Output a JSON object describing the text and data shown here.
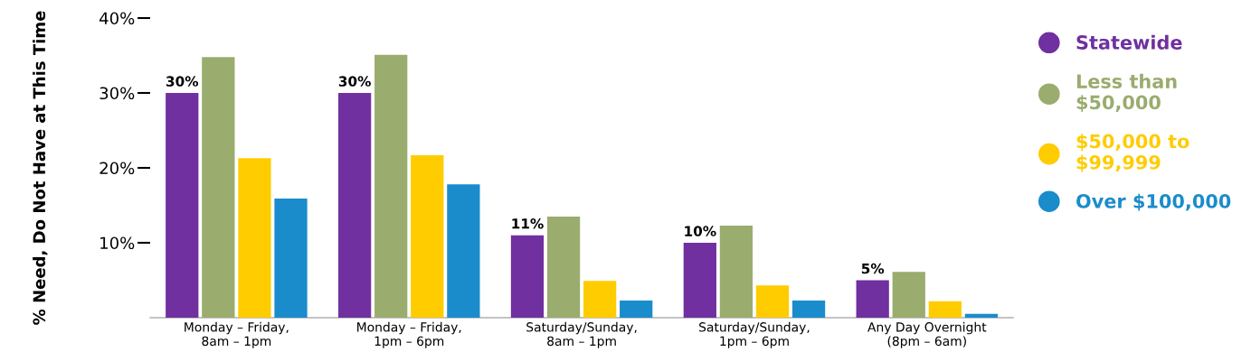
{
  "chart_data": {
    "type": "bar",
    "ylabel": "% Need, Do Not Have at This Time",
    "categories": [
      "Monday – Friday,\n8am – 1pm",
      "Monday – Friday,\n1pm – 6pm",
      "Saturday/Sunday,\n8am – 1pm",
      "Saturday/Sunday,\n1pm – 6pm",
      "Any Day Overnight\n(8pm – 6am)"
    ],
    "series": [
      {
        "name": "Statewide",
        "color": "#7030a0",
        "values": [
          30,
          30,
          11,
          10,
          5
        ],
        "value_labels": [
          "30%",
          "30%",
          "11%",
          "10%",
          "5%"
        ]
      },
      {
        "name": "Less than\n$50,000",
        "color": "#9aac6e",
        "values": [
          34.8,
          35.1,
          13.5,
          12.3,
          6.1
        ]
      },
      {
        "name": "$50,000 to\n$99,999",
        "color": "#ffcc00",
        "values": [
          21.3,
          21.7,
          4.9,
          4.3,
          2.2
        ]
      },
      {
        "name": "Over $100,000",
        "color": "#1a8ccc",
        "values": [
          15.9,
          17.8,
          2.3,
          2.3,
          0.5
        ]
      }
    ],
    "ylim": [
      0,
      40
    ],
    "yticks": [
      {
        "value": 10,
        "label": "10%"
      },
      {
        "value": 20,
        "label": "20%"
      },
      {
        "value": 30,
        "label": "30%"
      },
      {
        "value": 40,
        "label": "40%"
      }
    ],
    "grid": false,
    "legend": "right"
  }
}
